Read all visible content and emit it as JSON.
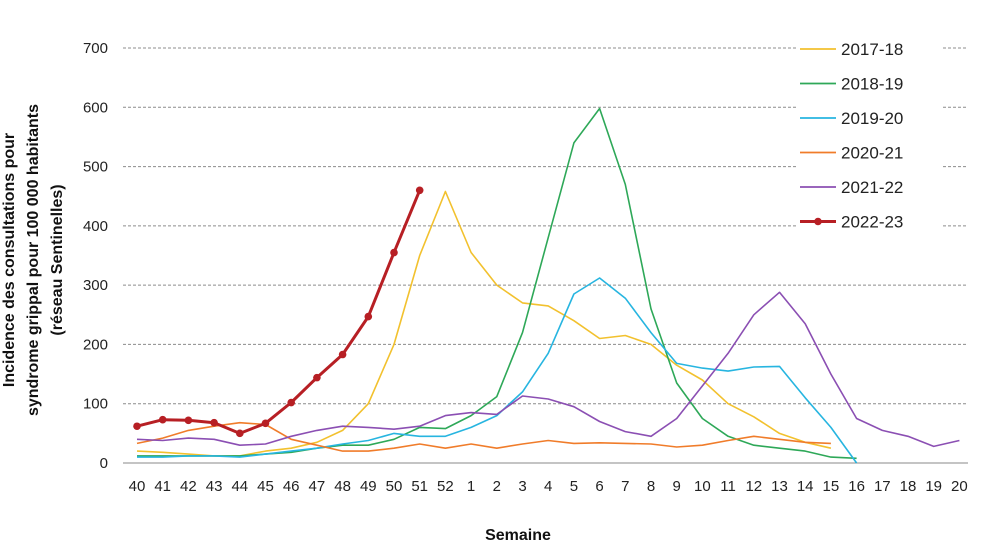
{
  "chart_data": {
    "type": "line",
    "title": "",
    "xlabel": "Semaine",
    "ylabel_lines": [
      "Incidence des consultations pour",
      "syndrome grippal pour 100 000 habitants",
      "(réseau Sentinelles)"
    ],
    "ylim": [
      0,
      700
    ],
    "yticks": [
      0,
      100,
      200,
      300,
      400,
      500,
      600,
      700
    ],
    "grid": "horizontal dashed",
    "legend_position": "right",
    "categories": [
      "40",
      "41",
      "42",
      "43",
      "44",
      "45",
      "46",
      "47",
      "48",
      "49",
      "50",
      "51",
      "52",
      "1",
      "2",
      "3",
      "4",
      "5",
      "6",
      "7",
      "8",
      "9",
      "10",
      "11",
      "12",
      "13",
      "14",
      "15",
      "16",
      "17",
      "18",
      "19",
      "20"
    ],
    "series": [
      {
        "name": "2017-18",
        "color": "#f2c12e",
        "markers": false,
        "values": [
          20,
          18,
          15,
          12,
          12,
          20,
          25,
          35,
          55,
          100,
          200,
          350,
          458,
          355,
          300,
          270,
          265,
          240,
          210,
          215,
          200,
          165,
          140,
          100,
          78,
          50,
          35,
          25,
          null,
          null,
          null,
          null,
          null
        ]
      },
      {
        "name": "2018-19",
        "color": "#2ea858",
        "markers": false,
        "values": [
          12,
          12,
          12,
          12,
          12,
          15,
          18,
          25,
          30,
          30,
          40,
          60,
          58,
          80,
          112,
          220,
          380,
          540,
          598,
          470,
          260,
          135,
          75,
          45,
          30,
          25,
          20,
          10,
          8,
          null,
          null,
          null,
          null
        ]
      },
      {
        "name": "2019-20",
        "color": "#27b5e0",
        "markers": false,
        "values": [
          10,
          10,
          12,
          12,
          10,
          15,
          20,
          25,
          32,
          38,
          50,
          45,
          45,
          60,
          80,
          120,
          185,
          285,
          312,
          278,
          220,
          168,
          160,
          155,
          162,
          163,
          110,
          60,
          0,
          null,
          null,
          null,
          null
        ]
      },
      {
        "name": "2020-21",
        "color": "#f07c2a",
        "markers": false,
        "values": [
          33,
          42,
          55,
          62,
          68,
          65,
          40,
          30,
          20,
          20,
          25,
          32,
          25,
          32,
          25,
          32,
          38,
          33,
          34,
          33,
          32,
          27,
          30,
          38,
          45,
          40,
          35,
          33,
          null,
          null,
          null,
          null,
          null
        ]
      },
      {
        "name": "2021-22",
        "color": "#8b4fb3",
        "markers": false,
        "values": [
          40,
          38,
          42,
          40,
          30,
          32,
          45,
          55,
          62,
          60,
          57,
          62,
          80,
          85,
          82,
          113,
          108,
          95,
          70,
          53,
          45,
          75,
          130,
          185,
          250,
          288,
          235,
          150,
          75,
          55,
          45,
          28,
          38
        ]
      },
      {
        "name": "2022-23",
        "color": "#b71f24",
        "markers": true,
        "values": [
          62,
          73,
          72,
          68,
          50,
          67,
          102,
          144,
          183,
          247,
          355,
          460,
          null,
          null,
          null,
          null,
          null,
          null,
          null,
          null,
          null,
          null,
          null,
          null,
          null,
          null,
          null,
          null,
          null,
          null,
          null,
          null,
          null
        ]
      }
    ]
  }
}
